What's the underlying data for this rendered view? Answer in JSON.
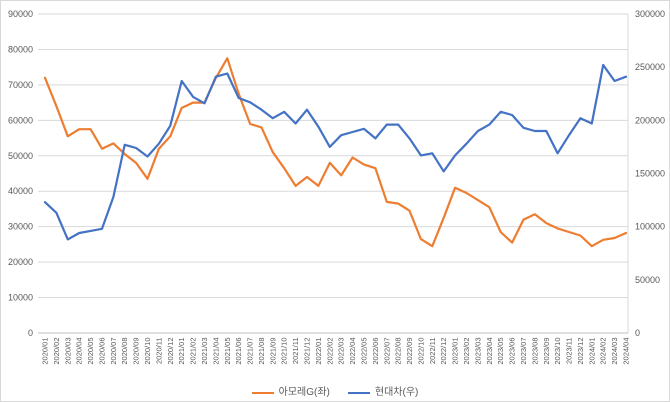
{
  "chart": {
    "background": "#FFFFFF",
    "border_color": "#D9D9D9",
    "grid_color": "#D9D9D9",
    "axis_line_color": "#BFBFBF",
    "label_color": "#595959",
    "legend": [
      {
        "label": "아모레G(좌)",
        "color": "#ED7D31"
      },
      {
        "label": "현대차(우)",
        "color": "#4472C4"
      }
    ]
  },
  "chart_data": {
    "type": "line",
    "title": "",
    "xlabel": "",
    "ylabel_left": "",
    "ylabel_right": "",
    "grid": true,
    "legend_position": "bottom",
    "categories": [
      "2020/01",
      "2020/02",
      "2020/03",
      "2020/04",
      "2020/05",
      "2020/06",
      "2020/07",
      "2020/08",
      "2020/09",
      "2020/10",
      "2020/11",
      "2020/12",
      "2021/01",
      "2021/02",
      "2021/03",
      "2021/04",
      "2021/05",
      "2021/06",
      "2021/07",
      "2021/08",
      "2021/09",
      "2021/10",
      "2021/11",
      "2021/12",
      "2022/01",
      "2022/02",
      "2022/03",
      "2022/04",
      "2022/05",
      "2022/06",
      "2022/07",
      "2022/08",
      "2022/09",
      "2022/10",
      "2022/11",
      "2022/12",
      "2023/01",
      "2023/02",
      "2023/03",
      "2023/04",
      "2023/05",
      "2023/06",
      "2023/07",
      "2023/08",
      "2023/09",
      "2023/10",
      "2023/11",
      "2023/12",
      "2024/01",
      "2024/02",
      "2024/03",
      "2024/04"
    ],
    "series": [
      {
        "name": "아모레G(좌)",
        "axis": "left",
        "color": "#ED7D31",
        "values": [
          72000,
          64000,
          55500,
          57500,
          57500,
          52000,
          53500,
          50500,
          48000,
          43500,
          52000,
          55500,
          63500,
          65000,
          65000,
          72000,
          77500,
          67500,
          59000,
          58000,
          51000,
          46500,
          41500,
          44000,
          41500,
          48000,
          44500,
          49500,
          47500,
          46500,
          37000,
          36500,
          34500,
          26500,
          24500,
          32500,
          41000,
          39500,
          37500,
          35500,
          28500,
          25500,
          32000,
          33500,
          31000,
          29500,
          28500,
          27500,
          24500,
          26300,
          26800,
          28200
        ]
      },
      {
        "name": "현대차(우)",
        "axis": "right",
        "color": "#4472C4",
        "values": [
          123000,
          113000,
          88000,
          94000,
          96000,
          98000,
          128000,
          177000,
          174000,
          166000,
          178000,
          195000,
          237000,
          222000,
          216000,
          241000,
          244000,
          221000,
          217000,
          210000,
          202000,
          208000,
          197000,
          210000,
          194000,
          175000,
          186000,
          189000,
          192000,
          183000,
          196000,
          196000,
          183000,
          167000,
          169000,
          152000,
          167000,
          178000,
          190000,
          196000,
          208000,
          205000,
          193000,
          190000,
          190000,
          169000,
          186000,
          202000,
          197000,
          252000,
          237000,
          241000
        ]
      }
    ],
    "left_axis": {
      "min": 0,
      "max": 90000,
      "step": 10000,
      "ticks": [
        "0",
        "10000",
        "20000",
        "30000",
        "40000",
        "50000",
        "60000",
        "70000",
        "80000",
        "90000"
      ]
    },
    "right_axis": {
      "min": 0,
      "max": 300000,
      "step": 50000,
      "ticks": [
        "0",
        "50000",
        "100000",
        "150000",
        "200000",
        "250000",
        "300000"
      ]
    }
  }
}
